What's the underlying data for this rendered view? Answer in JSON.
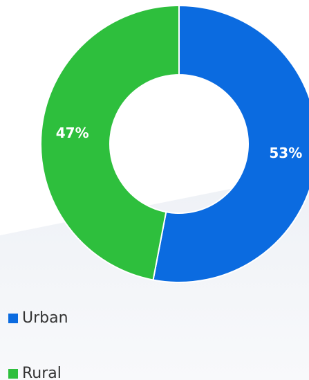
{
  "chart_data": {
    "type": "pie",
    "donut": true,
    "categories": [
      "Urban",
      "Rural"
    ],
    "values": [
      53,
      47
    ],
    "value_labels": [
      "53%",
      "47%"
    ],
    "colors": [
      "#0b6be0",
      "#2ebf3d"
    ]
  }
}
